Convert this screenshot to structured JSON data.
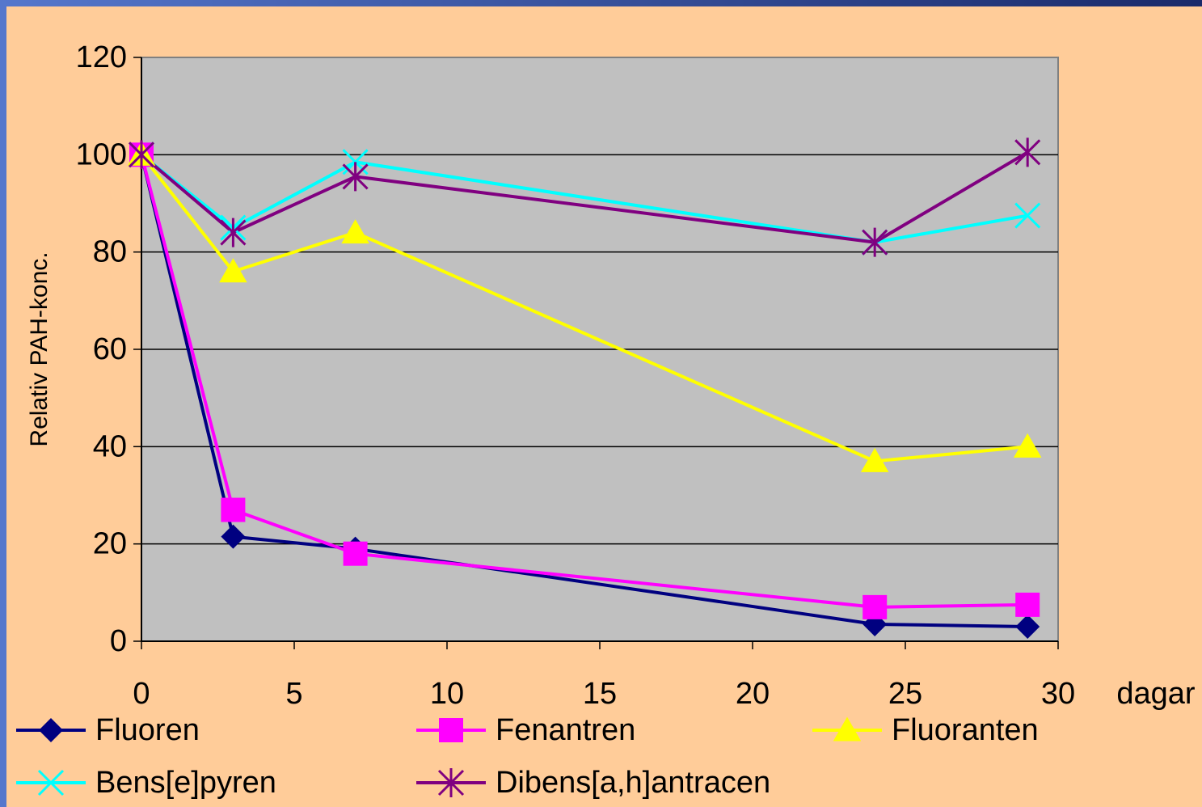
{
  "chart_data": {
    "type": "line",
    "x": [
      0,
      3,
      7,
      24,
      29
    ],
    "series": [
      {
        "name": "Fluoren",
        "color": "#000080",
        "marker": "diamond",
        "values": [
          100,
          21.5,
          19,
          3.5,
          3
        ]
      },
      {
        "name": "Fenantren",
        "color": "#FF00FF",
        "marker": "square",
        "values": [
          100,
          27,
          18,
          7,
          7.5
        ]
      },
      {
        "name": "Fluoranten",
        "color": "#FFFF00",
        "marker": "triangle",
        "values": [
          100,
          76,
          84,
          37,
          40
        ]
      },
      {
        "name": "Bens[e]pyren",
        "color": "#00FFFF",
        "marker": "x",
        "values": [
          100,
          85,
          98.5,
          82,
          87.5
        ]
      },
      {
        "name": "Dibens[a,h]antracen",
        "color": "#800080",
        "marker": "asterisk",
        "values": [
          100,
          84,
          95.5,
          82,
          100.5
        ]
      }
    ],
    "xlabel": "dagar",
    "ylabel": "Relativ PAH-konc.",
    "xlim": [
      0,
      30
    ],
    "xticks": [
      0,
      5,
      10,
      15,
      20,
      25,
      30
    ],
    "ylim": [
      0,
      120
    ],
    "yticks": [
      0,
      20,
      40,
      60,
      80,
      100,
      120
    ],
    "grid": true,
    "legend": "bottom"
  }
}
